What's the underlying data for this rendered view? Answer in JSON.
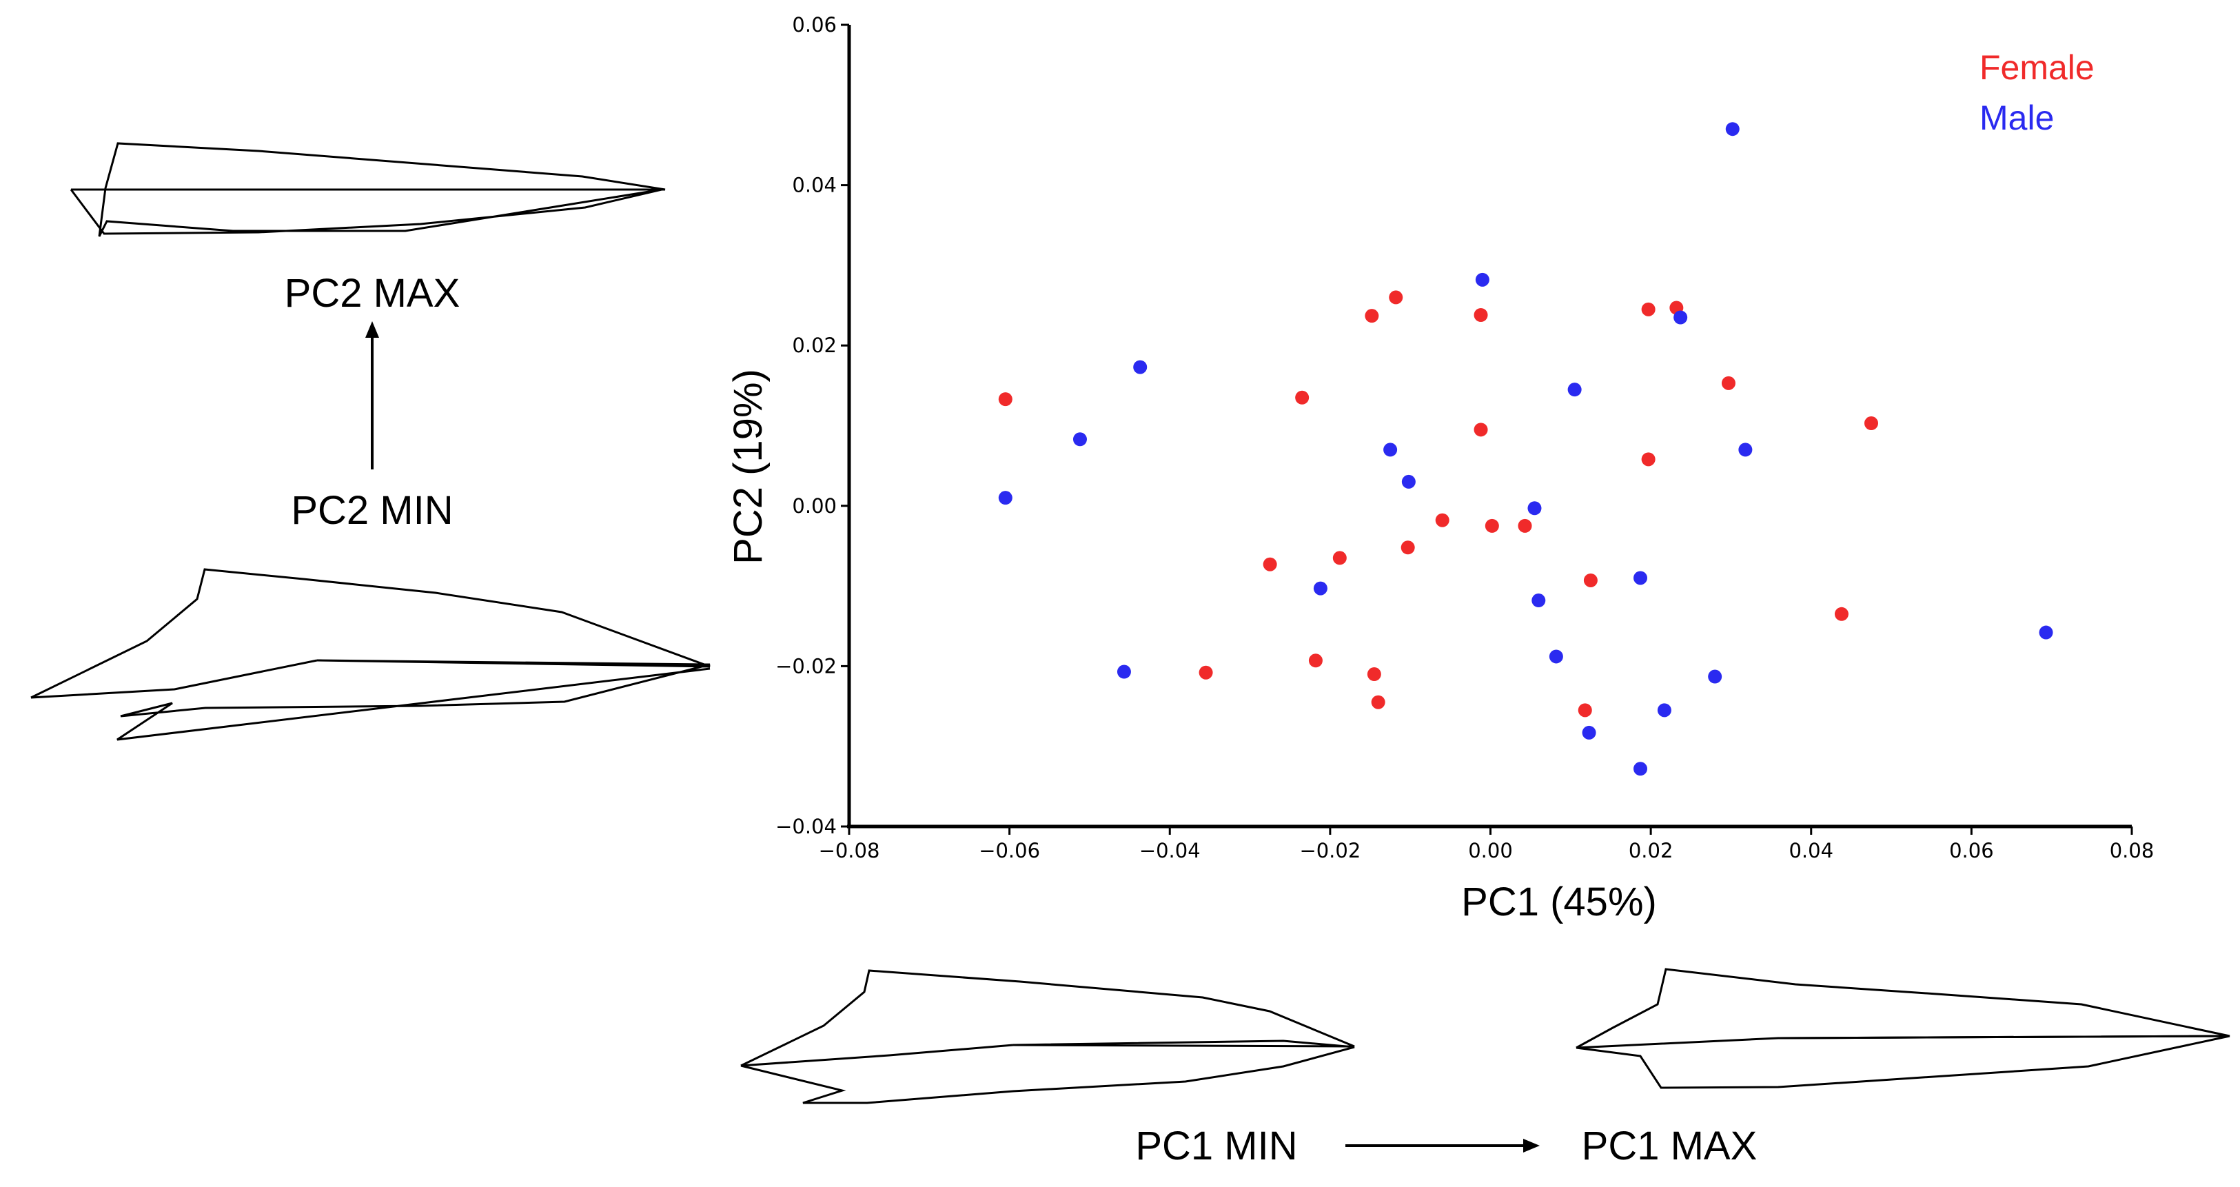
{
  "chart_data": {
    "type": "scatter",
    "xlabel": "PC1 (45%)",
    "ylabel": "PC2 (19%)",
    "xlim": [
      -0.08,
      0.08
    ],
    "ylim": [
      -0.04,
      0.06
    ],
    "xticks": [
      -0.08,
      -0.06,
      -0.04,
      -0.02,
      0.0,
      0.02,
      0.04,
      0.06,
      0.08
    ],
    "yticks": [
      -0.04,
      -0.02,
      0.0,
      0.02,
      0.04,
      0.06
    ],
    "xtick_labels": [
      "−0.08",
      "−0.06",
      "−0.04",
      "−0.02",
      "0.00",
      "0.02",
      "0.04",
      "0.06",
      "0.08"
    ],
    "ytick_labels": [
      "−0.04",
      "−0.02",
      "0.00",
      "0.02",
      "0.04",
      "0.06"
    ],
    "legend_position": "top-right",
    "series": [
      {
        "name": "Female",
        "color": "#f02a2a",
        "points": [
          [
            -0.0605,
            0.0133
          ],
          [
            -0.0355,
            -0.0208
          ],
          [
            -0.0275,
            -0.0073
          ],
          [
            -0.0235,
            0.0135
          ],
          [
            -0.0218,
            -0.0193
          ],
          [
            -0.0188,
            -0.0065
          ],
          [
            -0.0148,
            0.0237
          ],
          [
            -0.0145,
            -0.021
          ],
          [
            -0.014,
            -0.0245
          ],
          [
            -0.0118,
            0.026
          ],
          [
            -0.0103,
            -0.0052
          ],
          [
            -0.006,
            -0.0018
          ],
          [
            -0.0012,
            0.0238
          ],
          [
            -0.0012,
            0.0095
          ],
          [
            0.0002,
            -0.0025
          ],
          [
            0.0043,
            -0.0025
          ],
          [
            0.0125,
            -0.0093
          ],
          [
            0.0118,
            -0.0255
          ],
          [
            0.0197,
            0.0245
          ],
          [
            0.0232,
            0.0247
          ],
          [
            0.0197,
            0.0058
          ],
          [
            0.0297,
            0.0153
          ],
          [
            0.0438,
            -0.0135
          ],
          [
            0.0475,
            0.0103
          ]
        ]
      },
      {
        "name": "Male",
        "color": "#2a2af0",
        "points": [
          [
            -0.0605,
            0.001
          ],
          [
            -0.0512,
            0.0083
          ],
          [
            -0.0457,
            -0.0207
          ],
          [
            -0.0437,
            0.0173
          ],
          [
            -0.0212,
            -0.0103
          ],
          [
            -0.0125,
            0.007
          ],
          [
            -0.0102,
            0.003
          ],
          [
            -0.001,
            0.0282
          ],
          [
            0.0055,
            -0.0003
          ],
          [
            0.006,
            -0.0118
          ],
          [
            0.0105,
            0.0145
          ],
          [
            0.0082,
            -0.0188
          ],
          [
            0.0123,
            -0.0283
          ],
          [
            0.0187,
            -0.009
          ],
          [
            0.0187,
            -0.0328
          ],
          [
            0.0217,
            -0.0255
          ],
          [
            0.0237,
            0.0235
          ],
          [
            0.028,
            -0.0213
          ],
          [
            0.0302,
            0.047
          ],
          [
            0.0318,
            0.007
          ],
          [
            0.0693,
            -0.0158
          ]
        ]
      }
    ]
  },
  "annotations": {
    "pc2_max": "PC2 MAX",
    "pc2_min": "PC2 MIN",
    "pc1_min": "PC1 MIN",
    "pc1_max": "PC1 MAX"
  }
}
